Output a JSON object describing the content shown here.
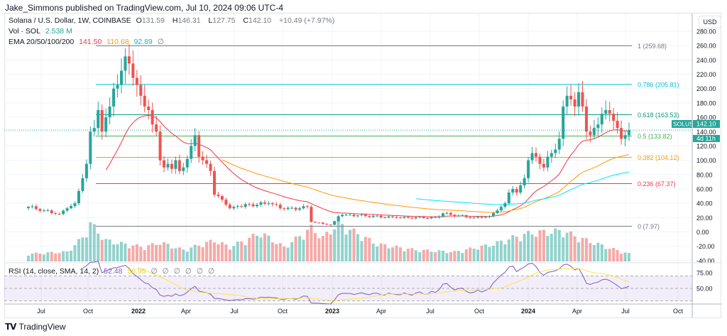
{
  "header": {
    "published": "Jake_Simmons published on TradingView.com, Jul 10, 2024 09:06 UTC-4"
  },
  "legend": {
    "symbol": "Solana / U.S. Dollar, 1W, COINBASE",
    "o_label": "O",
    "o": "131.59",
    "h_label": "H",
    "h": "146.31",
    "l_label": "L",
    "l": "127.75",
    "c_label": "C",
    "c": "142.10",
    "change": "+10.49 (+7.97%)",
    "vol_label": "Vol · SOL",
    "vol": "2.538 M",
    "ema_label": "EMA 20/50/100/200",
    "ema20": "141.50",
    "ema50": "110.68",
    "ema100": "92.89",
    "ema200": "∅",
    "rsi_label": "RSI (14, close, SMA, 14, 2)",
    "rsi": "52.48",
    "rsi_sma": "56.95",
    "rsi_na": [
      "∅",
      "∅",
      "∅",
      "∅",
      "∅",
      "∅"
    ]
  },
  "price_axis": {
    "currency": "USD",
    "ticks": [
      "280.00",
      "260.00",
      "240.00",
      "220.00",
      "200.00",
      "180.00",
      "160.00",
      "140.00",
      "120.00",
      "100.00",
      "80.00",
      "60.00",
      "40.00",
      "20.00",
      "0.00",
      "-20.00",
      "-40.00"
    ],
    "last_symbol": "SOLUSD",
    "last_price": "142.10",
    "countdown": "4d 11h"
  },
  "rsi_axis": {
    "ticks": [
      "75.00",
      "50.00"
    ]
  },
  "time_axis": [
    "Jul",
    "Oct",
    "2022",
    "Apr",
    "Jul",
    "Oct",
    "2023",
    "Apr",
    "Jul",
    "Oct",
    "2024",
    "Apr",
    "Jul",
    "Oct"
  ],
  "fib": [
    {
      "label": "1 (259.68)",
      "value": 259.68,
      "color": "#787b86"
    },
    {
      "label": "0.786 (205.81)",
      "value": 205.81,
      "color": "#00bcd4"
    },
    {
      "label": "0.618 (163.53)",
      "value": 163.53,
      "color": "#089981"
    },
    {
      "label": "0.5 (133.82)",
      "value": 133.82,
      "color": "#4caf50"
    },
    {
      "label": "0.382 (104.12)",
      "value": 104.12,
      "color": "#ff9800"
    },
    {
      "label": "0.236 (67.37)",
      "value": 67.37,
      "color": "#f23645"
    },
    {
      "label": "0 (7.97)",
      "value": 7.97,
      "color": "#787b86"
    }
  ],
  "colors": {
    "up": "#26a69a",
    "down": "#ef5350",
    "ema20": "#f23645",
    "ema50": "#ff9800",
    "ema100": "#00e5ff",
    "rsi": "#7e57c2",
    "rsi_sma": "#fbe64a",
    "accent": "#26a69a"
  },
  "footer": {
    "brand": "TradingView"
  },
  "chart_data": {
    "type": "candlestick",
    "interval": "1W",
    "ylim": [
      -40,
      280
    ],
    "grid": true,
    "close_anchors": [
      [
        0,
        35
      ],
      [
        4,
        30
      ],
      [
        8,
        25
      ],
      [
        10,
        33
      ],
      [
        12,
        40
      ],
      [
        14,
        75
      ],
      [
        15,
        95
      ],
      [
        16,
        140
      ],
      [
        17,
        145
      ],
      [
        18,
        170
      ],
      [
        19,
        140
      ],
      [
        20,
        160
      ],
      [
        21,
        175
      ],
      [
        22,
        200
      ],
      [
        23,
        205
      ],
      [
        24,
        225
      ],
      [
        25,
        245
      ],
      [
        26,
        235
      ],
      [
        27,
        215
      ],
      [
        28,
        205
      ],
      [
        29,
        190
      ],
      [
        30,
        175
      ],
      [
        31,
        170
      ],
      [
        32,
        150
      ],
      [
        33,
        140
      ],
      [
        34,
        100
      ],
      [
        35,
        90
      ],
      [
        36,
        95
      ],
      [
        37,
        88
      ],
      [
        38,
        100
      ],
      [
        39,
        85
      ],
      [
        40,
        90
      ],
      [
        41,
        102
      ],
      [
        42,
        120
      ],
      [
        43,
        135
      ],
      [
        44,
        105
      ],
      [
        45,
        100
      ],
      [
        46,
        95
      ],
      [
        47,
        85
      ],
      [
        48,
        52
      ],
      [
        49,
        50
      ],
      [
        50,
        45
      ],
      [
        51,
        38
      ],
      [
        52,
        33
      ],
      [
        53,
        35
      ],
      [
        54,
        36
      ],
      [
        62,
        40
      ],
      [
        66,
        32
      ],
      [
        70,
        33
      ],
      [
        72,
        35
      ],
      [
        73,
        14
      ],
      [
        74,
        13
      ],
      [
        78,
        10
      ],
      [
        79,
        15
      ],
      [
        80,
        22
      ],
      [
        81,
        24
      ],
      [
        82,
        24
      ],
      [
        95,
        20
      ],
      [
        105,
        20
      ],
      [
        107,
        26
      ],
      [
        109,
        24
      ],
      [
        115,
        20
      ],
      [
        119,
        22
      ],
      [
        121,
        30
      ],
      [
        123,
        40
      ],
      [
        124,
        55
      ],
      [
        125,
        60
      ],
      [
        126,
        55
      ],
      [
        127,
        65
      ],
      [
        128,
        75
      ],
      [
        129,
        100
      ],
      [
        130,
        110
      ],
      [
        131,
        105
      ],
      [
        132,
        95
      ],
      [
        133,
        90
      ],
      [
        134,
        105
      ],
      [
        135,
        110
      ],
      [
        136,
        115
      ],
      [
        137,
        130
      ],
      [
        138,
        175
      ],
      [
        139,
        190
      ],
      [
        140,
        185
      ],
      [
        141,
        175
      ],
      [
        142,
        195
      ],
      [
        143,
        175
      ],
      [
        144,
        140
      ],
      [
        145,
        135
      ],
      [
        146,
        145
      ],
      [
        147,
        150
      ],
      [
        148,
        165
      ],
      [
        149,
        170
      ],
      [
        150,
        165
      ],
      [
        151,
        155
      ],
      [
        152,
        145
      ],
      [
        153,
        130
      ],
      [
        154,
        135
      ],
      [
        155,
        142.1
      ]
    ],
    "volume_anchors_msol": [
      [
        0,
        8
      ],
      [
        10,
        10
      ],
      [
        14,
        25
      ],
      [
        16,
        40
      ],
      [
        20,
        22
      ],
      [
        25,
        18
      ],
      [
        30,
        15
      ],
      [
        34,
        20
      ],
      [
        40,
        12
      ],
      [
        48,
        22
      ],
      [
        52,
        15
      ],
      [
        60,
        30
      ],
      [
        66,
        15
      ],
      [
        73,
        35
      ],
      [
        76,
        25
      ],
      [
        80,
        40
      ],
      [
        90,
        18
      ],
      [
        100,
        12
      ],
      [
        110,
        10
      ],
      [
        120,
        18
      ],
      [
        125,
        25
      ],
      [
        130,
        30
      ],
      [
        138,
        32
      ],
      [
        142,
        25
      ],
      [
        150,
        14
      ],
      [
        155,
        8
      ]
    ]
  }
}
